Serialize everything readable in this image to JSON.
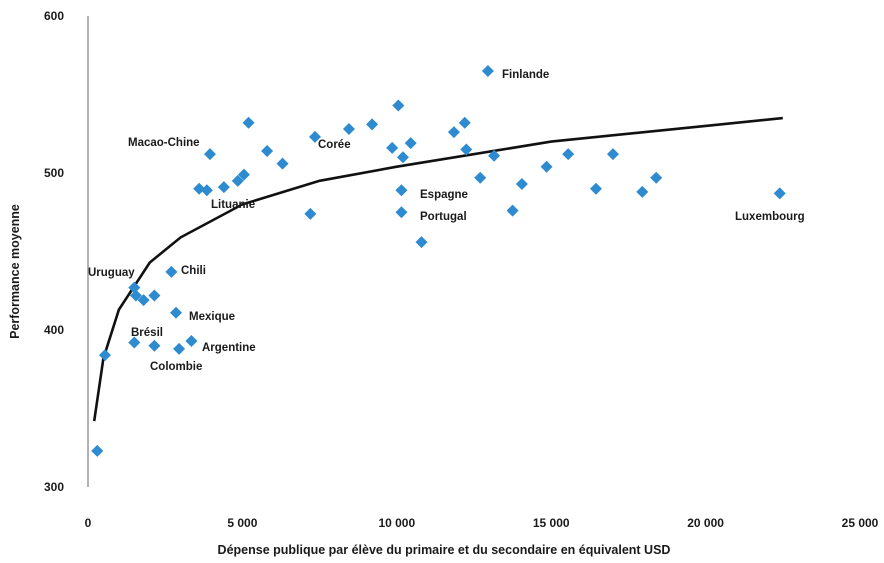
{
  "chart_data": {
    "type": "scatter",
    "xlabel": "Dépense publique par élève du primaire et du secondaire en équivalent USD",
    "ylabel": "Performance moyenne",
    "xlim": [
      0,
      25000
    ],
    "ylim": [
      300,
      600
    ],
    "x_ticks": [
      0,
      5000,
      10000,
      15000,
      20000,
      25000
    ],
    "x_tick_labels": [
      "0",
      "5 000",
      "10 000",
      "15 000",
      "20 000",
      "25 000"
    ],
    "y_ticks": [
      300,
      400,
      500,
      600
    ],
    "y_tick_labels": [
      "300",
      "400",
      "500",
      "600"
    ],
    "grid": false,
    "legend": "none",
    "marker": "diamond",
    "point_color": "#2e8bd0",
    "trend_color": "#111111",
    "trend": {
      "type": "logarithmic",
      "x": [
        200,
        500,
        1000,
        2000,
        3000,
        5000,
        7500,
        10000,
        15000,
        20000,
        22500
      ],
      "y": [
        342,
        382,
        413,
        443,
        459,
        480,
        495,
        504,
        520,
        530,
        535
      ]
    },
    "points": [
      {
        "x": 300,
        "y": 323,
        "label": ""
      },
      {
        "x": 550,
        "y": 384,
        "label": ""
      },
      {
        "x": 1500,
        "y": 392,
        "label": ""
      },
      {
        "x": 1500,
        "y": 427,
        "label": "Uruguay"
      },
      {
        "x": 1550,
        "y": 422,
        "label": ""
      },
      {
        "x": 1800,
        "y": 419,
        "label": ""
      },
      {
        "x": 2150,
        "y": 422,
        "label": ""
      },
      {
        "x": 2150,
        "y": 390,
        "label": "Brésil"
      },
      {
        "x": 2700,
        "y": 437,
        "label": "Chili"
      },
      {
        "x": 2850,
        "y": 411,
        "label": "Mexique"
      },
      {
        "x": 2950,
        "y": 388,
        "label": "Colombie"
      },
      {
        "x": 3350,
        "y": 393,
        "label": "Argentine"
      },
      {
        "x": 3600,
        "y": 490,
        "label": ""
      },
      {
        "x": 3850,
        "y": 489,
        "label": ""
      },
      {
        "x": 3950,
        "y": 512,
        "label": "Macao-Chine"
      },
      {
        "x": 4400,
        "y": 491,
        "label": "Lituanie"
      },
      {
        "x": 4850,
        "y": 495,
        "label": ""
      },
      {
        "x": 5050,
        "y": 499,
        "label": ""
      },
      {
        "x": 5200,
        "y": 532,
        "label": ""
      },
      {
        "x": 5800,
        "y": 514,
        "label": ""
      },
      {
        "x": 6300,
        "y": 506,
        "label": ""
      },
      {
        "x": 7200,
        "y": 474,
        "label": ""
      },
      {
        "x": 7350,
        "y": 523,
        "label": "Corée"
      },
      {
        "x": 8450,
        "y": 528,
        "label": ""
      },
      {
        "x": 9200,
        "y": 531,
        "label": ""
      },
      {
        "x": 9850,
        "y": 516,
        "label": ""
      },
      {
        "x": 10050,
        "y": 543,
        "label": ""
      },
      {
        "x": 10200,
        "y": 510,
        "label": ""
      },
      {
        "x": 10150,
        "y": 489,
        "label": "Espagne"
      },
      {
        "x": 10150,
        "y": 475,
        "label": "Portugal"
      },
      {
        "x": 10450,
        "y": 519,
        "label": ""
      },
      {
        "x": 10800,
        "y": 456,
        "label": ""
      },
      {
        "x": 11850,
        "y": 526,
        "label": ""
      },
      {
        "x": 12200,
        "y": 532,
        "label": ""
      },
      {
        "x": 12250,
        "y": 515,
        "label": ""
      },
      {
        "x": 12700,
        "y": 497,
        "label": ""
      },
      {
        "x": 12950,
        "y": 565,
        "label": "Finlande"
      },
      {
        "x": 13150,
        "y": 511,
        "label": ""
      },
      {
        "x": 13750,
        "y": 476,
        "label": ""
      },
      {
        "x": 14050,
        "y": 493,
        "label": ""
      },
      {
        "x": 14850,
        "y": 504,
        "label": ""
      },
      {
        "x": 15550,
        "y": 512,
        "label": ""
      },
      {
        "x": 16450,
        "y": 490,
        "label": ""
      },
      {
        "x": 17000,
        "y": 512,
        "label": ""
      },
      {
        "x": 17950,
        "y": 488,
        "label": ""
      },
      {
        "x": 18400,
        "y": 497,
        "label": ""
      },
      {
        "x": 22400,
        "y": 487,
        "label": "Luxembourg"
      }
    ]
  }
}
